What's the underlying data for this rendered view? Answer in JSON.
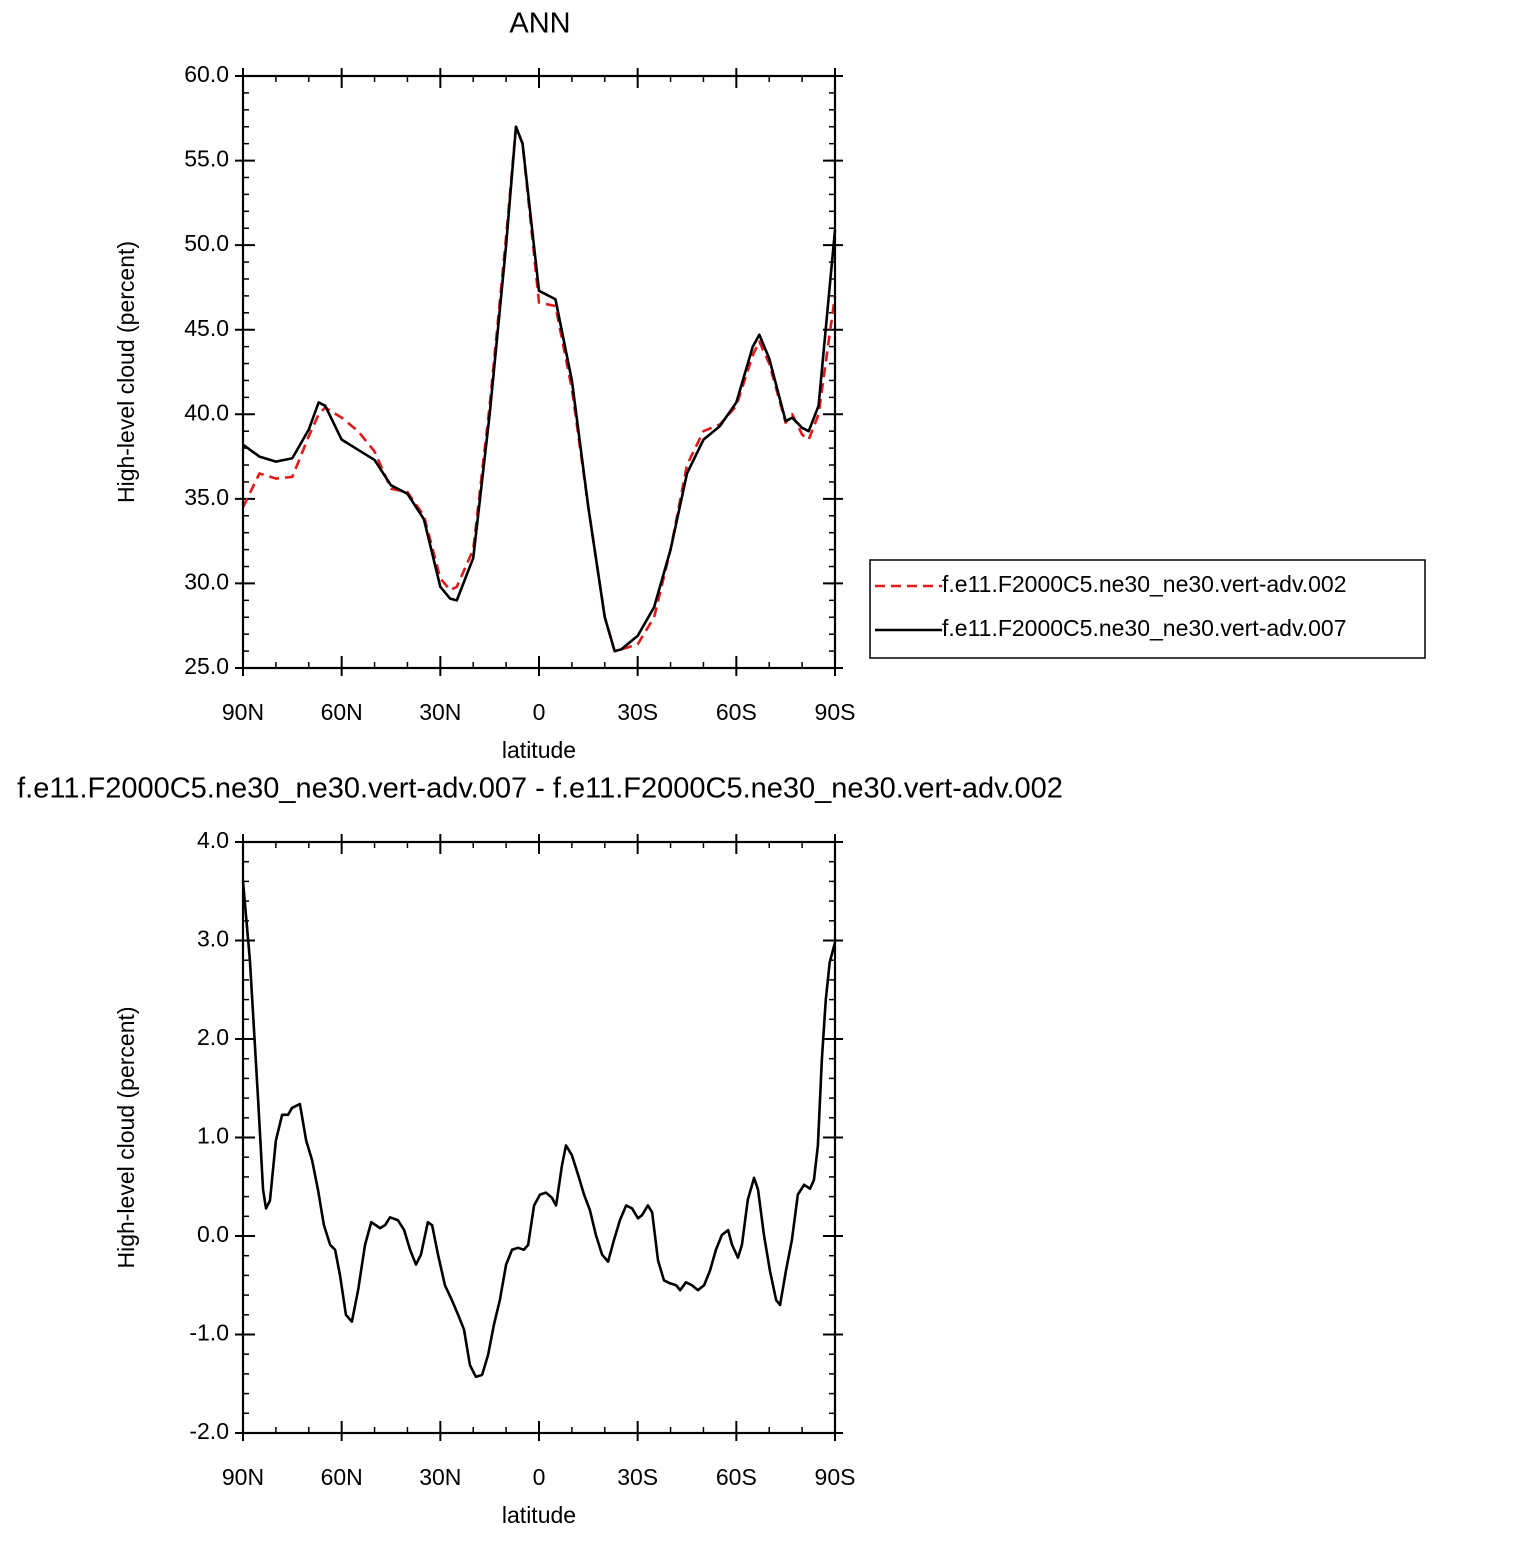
{
  "chart_data": [
    {
      "type": "line",
      "title": "ANN",
      "xlabel": "latitude",
      "ylabel": "High-level cloud (percent)",
      "x": [
        90,
        85,
        80,
        75,
        70,
        67,
        65,
        60,
        55,
        50,
        45,
        40,
        35,
        30,
        27,
        25,
        20,
        15,
        10,
        7,
        5,
        0,
        -5,
        -10,
        -15,
        -20,
        -23,
        -25,
        -30,
        -35,
        -40,
        -45,
        -50,
        -55,
        -60,
        -65,
        -67,
        -70,
        -75,
        -77,
        -80,
        -82,
        -85,
        -90
      ],
      "series": [
        {
          "name": "f.e11.F2000C5.ne30_ne30.vert-adv.002",
          "color": "#e0191b",
          "line_style": "dashed",
          "values": [
            34.5,
            36.5,
            36.2,
            36.3,
            38.7,
            40.0,
            40.4,
            39.8,
            39.0,
            37.8,
            35.6,
            35.4,
            34.0,
            30.3,
            29.6,
            29.8,
            32.0,
            40.5,
            50.5,
            57.0,
            56.0,
            46.6,
            46.4,
            41.5,
            34.5,
            28.0,
            26.0,
            26.1,
            26.4,
            28.0,
            32.0,
            37.0,
            39.0,
            39.4,
            40.5,
            43.5,
            44.3,
            43.0,
            39.5,
            40.0,
            38.8,
            38.5,
            40.0,
            47.0
          ]
        },
        {
          "name": "f.e11.F2000C5.ne30_ne30.vert-adv.007",
          "color": "#000000",
          "line_style": "solid",
          "values": [
            38.2,
            37.5,
            37.2,
            37.4,
            39.1,
            40.7,
            40.5,
            38.5,
            37.9,
            37.3,
            35.8,
            35.3,
            33.8,
            29.8,
            29.1,
            29.0,
            31.5,
            40.0,
            50.0,
            57.0,
            56.0,
            47.3,
            46.8,
            42.0,
            34.5,
            28.0,
            26.0,
            26.1,
            26.9,
            28.6,
            32.0,
            36.5,
            38.5,
            39.3,
            40.7,
            44.0,
            44.7,
            43.3,
            39.6,
            39.8,
            39.2,
            39.0,
            40.5,
            50.9
          ]
        }
      ],
      "xlim": [
        90,
        -90
      ],
      "xticks": [
        {
          "value": 90,
          "label": "90N"
        },
        {
          "value": 60,
          "label": "60N"
        },
        {
          "value": 30,
          "label": "30N"
        },
        0,
        {
          "value": -30,
          "label": "30S"
        },
        {
          "value": -60,
          "label": "60S"
        },
        {
          "value": -90,
          "label": "90S"
        }
      ],
      "ylim": [
        25,
        60
      ],
      "yticks": [
        {
          "value": 25,
          "label": "25.0"
        },
        {
          "value": 30,
          "label": "30.0"
        },
        {
          "value": 35,
          "label": "35.0"
        },
        {
          "value": 40,
          "label": "40.0"
        },
        {
          "value": 45,
          "label": "45.0"
        },
        {
          "value": 50,
          "label": "50.0"
        },
        {
          "value": 55,
          "label": "55.0"
        },
        {
          "value": 60,
          "label": "60.0"
        }
      ],
      "legend": "right"
    },
    {
      "type": "line",
      "title": "f.e11.F2000C5.ne30_ne30.vert-adv.007 - f.e11.F2000C5.ne30_ne30.vert-adv.002",
      "xlabel": "latitude",
      "ylabel": "High-level cloud (percent)",
      "x": [
        90,
        87.9,
        85.4,
        83.9,
        83,
        81.8,
        80,
        78.1,
        76.3,
        75.1,
        72.7,
        70.8,
        69,
        67.2,
        65.4,
        63.5,
        62,
        60.5,
        58.7,
        56.9,
        55,
        52.9,
        51,
        48.3,
        46.8,
        45.3,
        42.9,
        41,
        39.2,
        37.4,
        35.9,
        33.8,
        32.5,
        30.7,
        28.6,
        26.5,
        24.6,
        22.8,
        21,
        19.2,
        17.3,
        15.5,
        13.7,
        11.9,
        10,
        8.2,
        6.4,
        4.6,
        3.3,
        1.5,
        -0.3,
        -2.1,
        -3.9,
        -5.2,
        -7,
        -8.2,
        -10,
        -11.9,
        -13.7,
        -15.5,
        -17.3,
        -19.2,
        -21,
        -22.8,
        -24.6,
        -26.5,
        -28.3,
        -30.1,
        -31.3,
        -33.1,
        -34.4,
        -36.2,
        -38,
        -39.8,
        -41.7,
        -42.9,
        -44.7,
        -46.5,
        -48.3,
        -50.2,
        -52,
        -53.8,
        -55.6,
        -57.5,
        -58.7,
        -60.5,
        -61.7,
        -63.5,
        -65.4,
        -66.6,
        -68.4,
        -70.2,
        -72.1,
        -73.3,
        -75.1,
        -76.9,
        -78.7,
        -80.6,
        -82.4,
        -83.6,
        -84.8,
        -86,
        -87.2,
        -88.4,
        -90
      ],
      "series": [
        {
          "color": "#000000",
          "line_style": "solid",
          "values": [
            3.6,
            2.8,
            1.38,
            0.47,
            0.28,
            0.36,
            0.97,
            1.23,
            1.23,
            1.3,
            1.34,
            0.97,
            0.77,
            0.47,
            0.11,
            -0.09,
            -0.14,
            -0.4,
            -0.8,
            -0.87,
            -0.55,
            -0.09,
            0.14,
            0.08,
            0.11,
            0.19,
            0.16,
            0.06,
            -0.14,
            -0.29,
            -0.19,
            0.14,
            0.11,
            -0.19,
            -0.5,
            -0.65,
            -0.8,
            -0.95,
            -1.31,
            -1.43,
            -1.41,
            -1.21,
            -0.9,
            -0.65,
            -0.29,
            -0.14,
            -0.12,
            -0.14,
            -0.09,
            0.31,
            0.42,
            0.44,
            0.39,
            0.31,
            0.72,
            0.92,
            0.82,
            0.62,
            0.42,
            0.26,
            0.01,
            -0.19,
            -0.26,
            -0.04,
            0.16,
            0.31,
            0.28,
            0.18,
            0.21,
            0.31,
            0.24,
            -0.25,
            -0.45,
            -0.48,
            -0.5,
            -0.55,
            -0.47,
            -0.5,
            -0.55,
            -0.5,
            -0.35,
            -0.14,
            0.01,
            0.06,
            -0.09,
            -0.22,
            -0.09,
            0.37,
            0.59,
            0.47,
            0.01,
            -0.35,
            -0.65,
            -0.7,
            -0.35,
            -0.04,
            0.42,
            0.52,
            0.48,
            0.57,
            0.92,
            1.79,
            2.4,
            2.78,
            2.98
          ]
        }
      ],
      "xlim": [
        90,
        -90
      ],
      "xticks": [
        {
          "value": 90,
          "label": "90N"
        },
        {
          "value": 60,
          "label": "60N"
        },
        {
          "value": 30,
          "label": "30N"
        },
        0,
        {
          "value": -30,
          "label": "30S"
        },
        {
          "value": -60,
          "label": "60S"
        },
        {
          "value": -90,
          "label": "90S"
        }
      ],
      "ylim": [
        -2,
        4
      ],
      "yticks": [
        {
          "value": -2,
          "label": "-2.0"
        },
        {
          "value": -1,
          "label": "-1.0"
        },
        {
          "value": 0,
          "label": "0.0"
        },
        {
          "value": 1,
          "label": "1.0"
        },
        {
          "value": 2,
          "label": "2.0"
        },
        {
          "value": 3,
          "label": "3.0"
        },
        {
          "value": 4,
          "label": "4.0"
        }
      ]
    }
  ]
}
